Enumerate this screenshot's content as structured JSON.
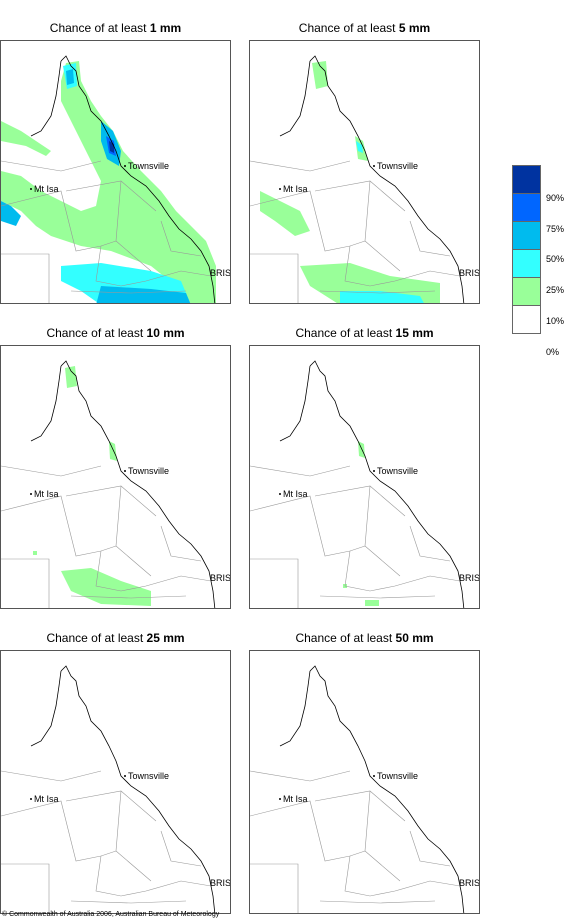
{
  "panels": [
    {
      "prefix": "Chance of at least ",
      "amount": "1 mm"
    },
    {
      "prefix": "Chance of at least ",
      "amount": "5 mm"
    },
    {
      "prefix": "Chance of at least ",
      "amount": "10 mm"
    },
    {
      "prefix": "Chance of at least ",
      "amount": "15 mm"
    },
    {
      "prefix": "Chance of at least ",
      "amount": "25 mm"
    },
    {
      "prefix": "Chance of at least ",
      "amount": "50 mm"
    }
  ],
  "places": {
    "townsville": "Townsville",
    "mtisa": "Mt Isa",
    "bris": "BRIS"
  },
  "legend": {
    "labels": [
      "90%",
      "75%",
      "50%",
      "25%",
      "10%",
      "0%"
    ],
    "colors": [
      "#0033a0",
      "#0066ff",
      "#00bbee",
      "#33ffff",
      "#99ff99",
      "#ffffff"
    ]
  },
  "footer": "© Commonwealth of Australia 2006, Australian Bureau of Meteorology"
}
